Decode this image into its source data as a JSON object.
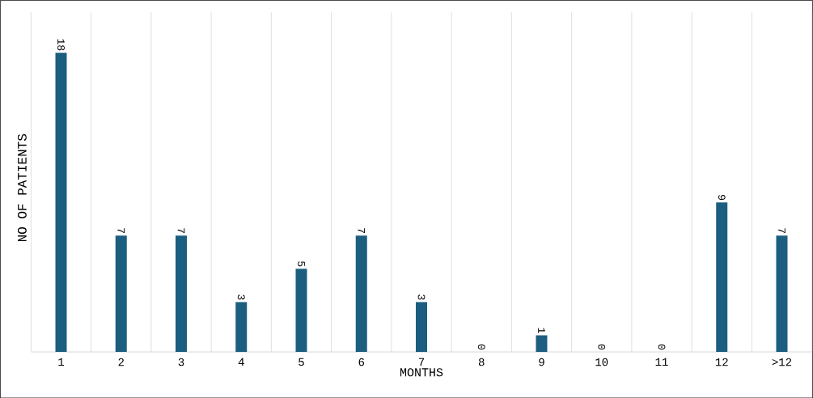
{
  "chart_data": {
    "type": "bar",
    "xlabel": "MONTHS",
    "ylabel": "NO OF PATIENTS",
    "categories": [
      "1",
      "2",
      "3",
      "4",
      "5",
      "6",
      "7",
      "8",
      "9",
      "10",
      "11",
      "12",
      ">12"
    ],
    "values": [
      18,
      7,
      7,
      3,
      5,
      7,
      3,
      0,
      1,
      0,
      0,
      9,
      7
    ],
    "color": "#1b5e80",
    "data_labels": true,
    "grid": "x"
  }
}
